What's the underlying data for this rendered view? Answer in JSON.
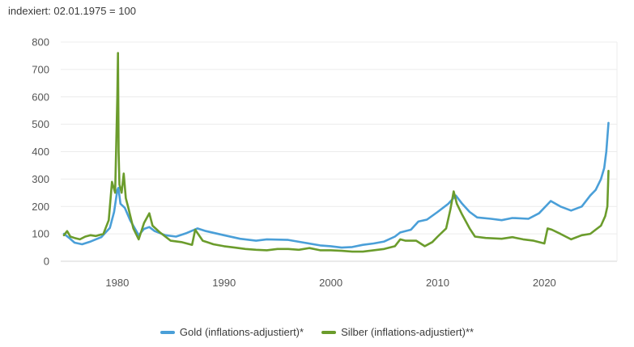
{
  "chart_data": {
    "type": "line",
    "subtitle": "indexiert: 02.01.1975 = 100",
    "xlabel": "",
    "ylabel": "",
    "xlim": [
      1974.7,
      2026.8
    ],
    "ylim": [
      0,
      800
    ],
    "x_ticks": [
      1980,
      1990,
      2000,
      2010,
      2020
    ],
    "y_ticks": [
      0,
      100,
      200,
      300,
      400,
      500,
      600,
      700,
      800
    ],
    "grid": "horizontal",
    "legend_position": "bottom-center",
    "series": [
      {
        "name": "Gold (inflations-adjustiert)*",
        "color": "#4a9fd8",
        "x": [
          1975.0,
          1975.5,
          1976.0,
          1976.7,
          1977.5,
          1978.5,
          1979.3,
          1979.7,
          1980.0,
          1980.1,
          1980.3,
          1980.7,
          1981.2,
          1982.0,
          1982.5,
          1983.0,
          1983.5,
          1984.5,
          1985.5,
          1986.5,
          1987.5,
          1988.3,
          1990.0,
          1991.5,
          1993.0,
          1994.0,
          1996.0,
          1997.5,
          1999.0,
          2000.0,
          2001.0,
          2002.0,
          2003.0,
          2004.0,
          2005.0,
          2006.0,
          2006.5,
          2007.5,
          2008.2,
          2009.0,
          2010.0,
          2011.0,
          2011.7,
          2012.3,
          2013.0,
          2013.7,
          2015.0,
          2016.0,
          2017.0,
          2018.5,
          2019.5,
          2020.6,
          2021.5,
          2022.5,
          2023.5,
          2024.3,
          2024.8,
          2025.3,
          2025.6,
          2025.8,
          2026.0
        ],
        "values": [
          100,
          85,
          68,
          62,
          72,
          88,
          122,
          180,
          260,
          268,
          210,
          195,
          150,
          95,
          118,
          125,
          110,
          95,
          90,
          103,
          120,
          110,
          95,
          82,
          75,
          80,
          78,
          68,
          58,
          55,
          50,
          52,
          60,
          65,
          72,
          90,
          105,
          115,
          145,
          152,
          180,
          210,
          240,
          210,
          180,
          160,
          155,
          150,
          158,
          155,
          175,
          220,
          200,
          185,
          200,
          240,
          260,
          300,
          340,
          400,
          505
        ]
      },
      {
        "name": "Silber (inflations-adjustiert)**",
        "color": "#6b9c2c",
        "x": [
          1975.0,
          1975.3,
          1975.6,
          1976.0,
          1976.5,
          1977.0,
          1977.5,
          1978.0,
          1978.7,
          1979.2,
          1979.5,
          1979.8,
          1980.0,
          1980.06,
          1980.12,
          1980.2,
          1980.4,
          1980.6,
          1980.8,
          1981.0,
          1981.5,
          1982.0,
          1982.5,
          1983.0,
          1983.3,
          1984.0,
          1985.0,
          1986.0,
          1987.0,
          1987.3,
          1988.0,
          1989.0,
          1990.0,
          1991.0,
          1992.0,
          1993.0,
          1994.0,
          1995.0,
          1996.0,
          1997.0,
          1998.0,
          1999.0,
          2000.0,
          2001.0,
          2002.0,
          2003.0,
          2004.0,
          2005.0,
          2006.0,
          2006.5,
          2007.0,
          2008.0,
          2008.8,
          2009.5,
          2010.0,
          2010.8,
          2011.2,
          2011.5,
          2011.8,
          2012.3,
          2013.0,
          2013.5,
          2014.5,
          2016.0,
          2017.0,
          2018.0,
          2019.0,
          2020.0,
          2020.3,
          2020.7,
          2021.5,
          2022.5,
          2023.5,
          2024.3,
          2024.8,
          2025.3,
          2025.7,
          2025.9,
          2026.0
        ],
        "values": [
          95,
          110,
          90,
          85,
          80,
          90,
          95,
          92,
          100,
          150,
          290,
          250,
          600,
          760,
          400,
          280,
          250,
          320,
          230,
          200,
          120,
          80,
          140,
          175,
          130,
          105,
          75,
          70,
          60,
          115,
          75,
          62,
          55,
          50,
          45,
          42,
          40,
          45,
          45,
          42,
          48,
          40,
          40,
          38,
          35,
          35,
          40,
          45,
          55,
          80,
          75,
          75,
          55,
          70,
          90,
          120,
          190,
          255,
          210,
          170,
          120,
          90,
          85,
          82,
          88,
          80,
          75,
          65,
          120,
          115,
          100,
          80,
          95,
          100,
          115,
          130,
          165,
          200,
          330
        ]
      }
    ]
  }
}
